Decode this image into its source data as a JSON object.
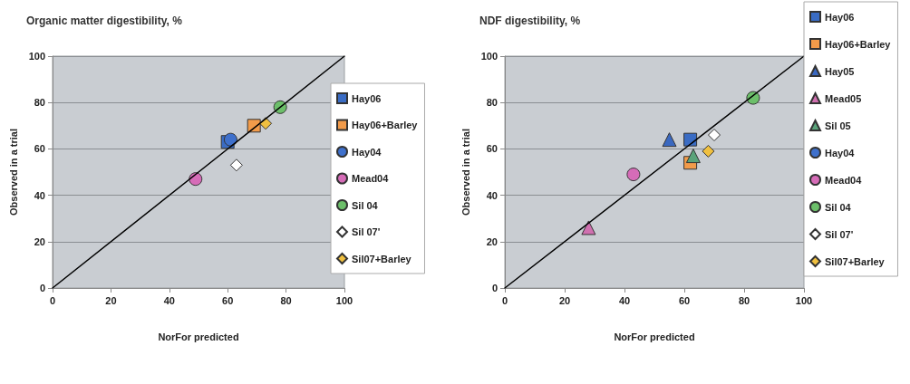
{
  "chart_data": [
    {
      "type": "scatter",
      "title": "Organic matter digestibility, %",
      "xlabel": "NorFor predicted",
      "ylabel": "Observed in a trial",
      "xlim": [
        0,
        100
      ],
      "ylim": [
        0,
        100
      ],
      "xticks": [
        0,
        20,
        40,
        60,
        80,
        100
      ],
      "yticks": [
        0,
        20,
        40,
        60,
        80,
        100
      ],
      "grid": "y",
      "legend": "right",
      "series": [
        {
          "type": "line",
          "color": "#000000",
          "marker": "none",
          "line_style": "solid",
          "x": [
            0,
            100
          ],
          "values": [
            0,
            100
          ]
        },
        {
          "name": "Hay06",
          "color": "#3a6cc4",
          "marker": "square",
          "x": [
            60
          ],
          "values": [
            63
          ]
        },
        {
          "name": "Hay06+Barley",
          "color": "#f29b4a",
          "marker": "square",
          "x": [
            69
          ],
          "values": [
            70
          ]
        },
        {
          "name": "Hay04",
          "color": "#3e70cc",
          "marker": "circle",
          "x": [
            61
          ],
          "values": [
            64
          ]
        },
        {
          "name": "Mead04",
          "color": "#d66cb8",
          "marker": "circle",
          "x": [
            49
          ],
          "values": [
            47
          ]
        },
        {
          "name": "Sil 04",
          "color": "#6cbf6a",
          "marker": "circle",
          "x": [
            78
          ],
          "values": [
            78
          ]
        },
        {
          "name": "Sil 07'",
          "color": "#ffffff",
          "marker": "diamond",
          "x": [
            63
          ],
          "values": [
            53
          ]
        },
        {
          "name": "Sil07+Barley",
          "color": "#f0c040",
          "marker": "diamond",
          "x": [
            73
          ],
          "values": [
            71
          ]
        }
      ]
    },
    {
      "type": "scatter",
      "title": "NDF digestibility, %",
      "xlabel": "NorFor predicted",
      "ylabel": "Observed in a trial",
      "xlim": [
        0,
        100
      ],
      "ylim": [
        0,
        100
      ],
      "xticks": [
        0,
        20,
        40,
        60,
        80,
        100
      ],
      "yticks": [
        0,
        20,
        40,
        60,
        80,
        100
      ],
      "grid": "y",
      "legend": "right",
      "series": [
        {
          "type": "line",
          "color": "#000000",
          "marker": "none",
          "line_style": "solid",
          "x": [
            0,
            100
          ],
          "values": [
            0,
            100
          ]
        },
        {
          "name": "Hay06",
          "color": "#3a6cc4",
          "marker": "square",
          "x": [
            62
          ],
          "values": [
            64
          ]
        },
        {
          "name": "Hay06+Barley",
          "color": "#f29b4a",
          "marker": "square",
          "x": [
            62
          ],
          "values": [
            54
          ]
        },
        {
          "name": "Hay05",
          "color": "#3a68c0",
          "marker": "triangle",
          "x": [
            55
          ],
          "values": [
            64
          ]
        },
        {
          "name": "Mead05",
          "color": "#d070b0",
          "marker": "triangle",
          "x": [
            28
          ],
          "values": [
            26
          ]
        },
        {
          "name": "Sil 05",
          "color": "#5aa37a",
          "marker": "triangle",
          "x": [
            63
          ],
          "values": [
            57
          ]
        },
        {
          "name": "Hay04",
          "color": "#3e70cc",
          "marker": "circle",
          "x": [
            null
          ],
          "values": [
            null
          ]
        },
        {
          "name": "Mead04",
          "color": "#d66cb8",
          "marker": "circle",
          "x": [
            43
          ],
          "values": [
            49
          ]
        },
        {
          "name": "Sil 04",
          "color": "#6cbf6a",
          "marker": "circle",
          "x": [
            83
          ],
          "values": [
            82
          ]
        },
        {
          "name": "Sil 07'",
          "color": "#ffffff",
          "marker": "diamond",
          "x": [
            70
          ],
          "values": [
            66
          ]
        },
        {
          "name": "Sil07+Barley",
          "color": "#f0c040",
          "marker": "diamond",
          "x": [
            68
          ],
          "values": [
            59
          ]
        }
      ]
    }
  ]
}
